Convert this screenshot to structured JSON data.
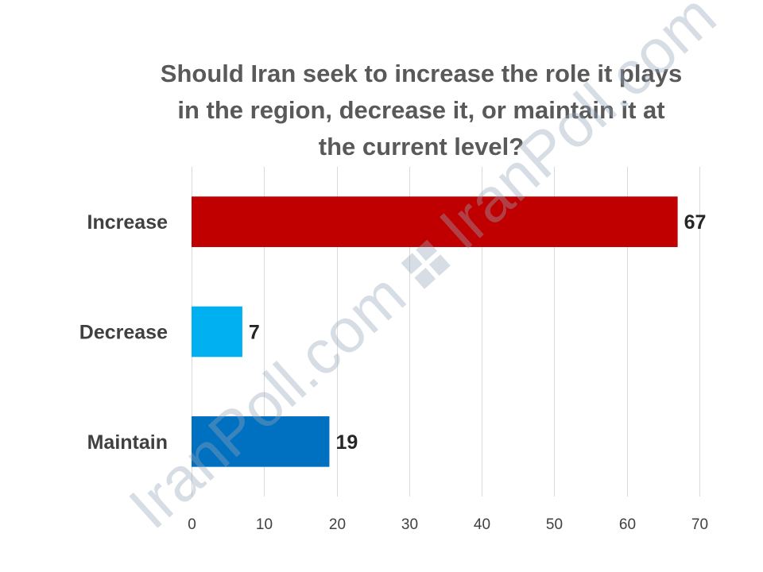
{
  "chart_data": {
    "type": "bar",
    "orientation": "horizontal",
    "title_lines": [
      "Should Iran seek to increase the role it plays",
      "in the region, decrease it, or maintain it at",
      "the current level?"
    ],
    "categories": [
      "Increase",
      "Decrease",
      "Maintain"
    ],
    "values": [
      67,
      7,
      19
    ],
    "data_labels": [
      "67",
      "7",
      "19"
    ],
    "colors": [
      "#c00000",
      "#00b0f0",
      "#0070c0"
    ],
    "xlim": [
      0,
      70
    ],
    "xticks": [
      "0",
      "10",
      "20",
      "30",
      "40",
      "50",
      "60",
      "70"
    ],
    "grid": true,
    "legend": "none"
  },
  "watermark": {
    "text_left": "IranPoll.com",
    "text_right": "IranPoll.com",
    "color": "#96a5b9"
  }
}
